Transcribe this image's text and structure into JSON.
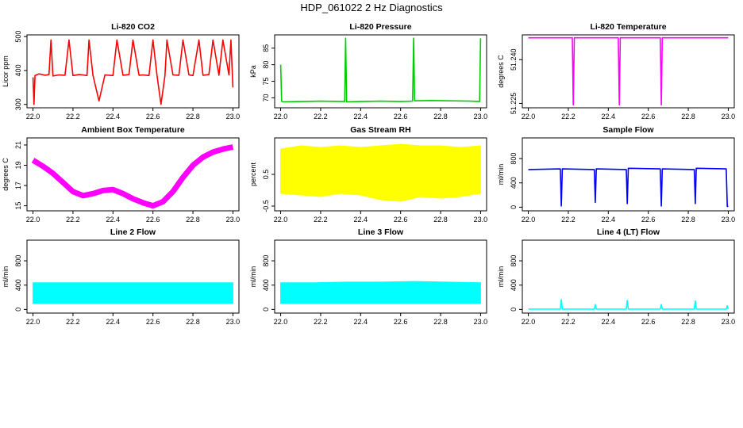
{
  "title": "HDP_061022 2 Hz Diagnostics",
  "chart_data": [
    {
      "type": "line",
      "title": "Li-820 CO2",
      "ylabel": "Licor ppm",
      "color": "#ff0000",
      "xlim": [
        21.97,
        23.03
      ],
      "ylim": [
        290,
        505
      ],
      "xticks": [
        "22.0",
        "22.2",
        "22.4",
        "22.6",
        "22.8",
        "23.0"
      ],
      "yticks": [
        "300",
        "400",
        "500"
      ],
      "series": [
        {
          "x": [
            22.0,
            22.005,
            22.01,
            22.03,
            22.06,
            22.08,
            22.09,
            22.1,
            22.13,
            22.16,
            22.18,
            22.2,
            22.23,
            22.25,
            22.27,
            22.28,
            22.3,
            22.33,
            22.36,
            22.4,
            22.42,
            22.45,
            22.48,
            22.5,
            22.53,
            22.55,
            22.58,
            22.6,
            22.62,
            22.64,
            22.66,
            22.67,
            22.7,
            22.73,
            22.75,
            22.78,
            22.8,
            22.83,
            22.85,
            22.88,
            22.9,
            22.93,
            22.95,
            22.98,
            22.99,
            23.0
          ],
          "y": [
            380,
            300,
            385,
            390,
            386,
            388,
            490,
            384,
            387,
            386,
            490,
            385,
            388,
            387,
            385,
            490,
            386,
            310,
            387,
            385,
            490,
            386,
            388,
            490,
            386,
            387,
            385,
            490,
            387,
            300,
            385,
            490,
            387,
            386,
            490,
            387,
            385,
            490,
            386,
            388,
            490,
            386,
            490,
            387,
            490,
            350
          ]
        }
      ]
    },
    {
      "type": "line",
      "title": "Li-820 Pressure",
      "ylabel": "kPa",
      "color": "#00cc00",
      "xlim": [
        21.97,
        23.03
      ],
      "ylim": [
        67,
        89
      ],
      "xticks": [
        "22.0",
        "22.2",
        "22.4",
        "22.6",
        "22.8",
        "23.0"
      ],
      "yticks": [
        "70",
        "75",
        "80",
        "85"
      ],
      "series": [
        {
          "x": [
            22.0,
            22.005,
            22.01,
            22.1,
            22.2,
            22.32,
            22.325,
            22.33,
            22.4,
            22.5,
            22.6,
            22.66,
            22.665,
            22.67,
            22.75,
            22.85,
            22.95,
            22.995,
            23.0
          ],
          "y": [
            80,
            69,
            68.8,
            68.9,
            69,
            68.9,
            88,
            68.8,
            68.9,
            69.0,
            68.9,
            69,
            88,
            69.1,
            69.2,
            69.1,
            69.0,
            68.9,
            88
          ]
        }
      ]
    },
    {
      "type": "line",
      "title": "Li-820 Temperature",
      "ylabel": "degrees C",
      "color": "#ff00ff",
      "xlim": [
        21.97,
        23.03
      ],
      "ylim": [
        51.2235,
        51.2485
      ],
      "xticks": [
        "22.0",
        "22.2",
        "22.4",
        "22.6",
        "22.8",
        "23.0"
      ],
      "yticks": [
        "51.225",
        "51.240"
      ],
      "series": [
        {
          "x": [
            22.0,
            22.22,
            22.225,
            22.23,
            22.45,
            22.455,
            22.46,
            22.66,
            22.665,
            22.67,
            22.8,
            23.0
          ],
          "y": [
            51.2475,
            51.2475,
            51.2245,
            51.2475,
            51.2475,
            51.2245,
            51.2475,
            51.2475,
            51.2245,
            51.2475,
            51.2475,
            51.2475
          ]
        }
      ]
    },
    {
      "type": "line",
      "title": "Ambient Box Temperature",
      "ylabel": "degrees C",
      "color": "#ff00ff",
      "xlim": [
        21.97,
        23.03
      ],
      "ylim": [
        14.5,
        21.7
      ],
      "xticks": [
        "22.0",
        "22.2",
        "22.4",
        "22.6",
        "22.8",
        "23.0"
      ],
      "yticks": [
        "15",
        "17",
        "19",
        "21"
      ],
      "series": [
        {
          "x": [
            22.0,
            22.05,
            22.1,
            22.15,
            22.2,
            22.25,
            22.3,
            22.35,
            22.4,
            22.45,
            22.5,
            22.55,
            22.6,
            22.65,
            22.7,
            22.75,
            22.8,
            22.85,
            22.9,
            22.95,
            23.0
          ],
          "y": [
            19.5,
            18.9,
            18.2,
            17.3,
            16.4,
            16.0,
            16.2,
            16.5,
            16.6,
            16.2,
            15.7,
            15.3,
            15.0,
            15.4,
            16.4,
            17.8,
            19.0,
            19.8,
            20.3,
            20.6,
            20.8
          ]
        }
      ]
    },
    {
      "type": "area",
      "title": "Gas Stream RH",
      "ylabel": "percent",
      "color": "#ffff00",
      "xlim": [
        21.97,
        23.03
      ],
      "ylim": [
        -0.65,
        1.65
      ],
      "xticks": [
        "22.0",
        "22.2",
        "22.4",
        "22.6",
        "22.8",
        "23.0"
      ],
      "yticks": [
        "-0.5",
        "0.5"
      ],
      "series": [
        {
          "x": [
            22.0,
            22.1,
            22.2,
            22.3,
            22.4,
            22.5,
            22.6,
            22.7,
            22.8,
            22.9,
            23.0
          ],
          "low": [
            -0.1,
            -0.15,
            -0.2,
            -0.1,
            -0.15,
            -0.3,
            -0.35,
            -0.2,
            -0.25,
            -0.2,
            -0.1
          ],
          "high": [
            1.3,
            1.4,
            1.35,
            1.4,
            1.35,
            1.4,
            1.45,
            1.4,
            1.4,
            1.35,
            1.4
          ]
        }
      ]
    },
    {
      "type": "line",
      "title": "Sample Flow",
      "ylabel": "ml/min",
      "color": "#0000ff",
      "xlim": [
        21.97,
        23.03
      ],
      "ylim": [
        -60,
        1140
      ],
      "xticks": [
        "22.0",
        "22.2",
        "22.4",
        "22.6",
        "22.8",
        "23.0"
      ],
      "yticks": [
        "0",
        "400",
        "800"
      ],
      "series": [
        {
          "x": [
            22.0,
            22.16,
            22.165,
            22.17,
            22.33,
            22.335,
            22.34,
            22.49,
            22.495,
            22.5,
            22.66,
            22.665,
            22.67,
            22.83,
            22.835,
            22.84,
            22.99,
            22.995,
            23.0
          ],
          "y": [
            620,
            630,
            20,
            630,
            620,
            80,
            630,
            620,
            60,
            640,
            630,
            20,
            630,
            620,
            60,
            640,
            630,
            10,
            20
          ]
        }
      ]
    },
    {
      "type": "area",
      "title": "Line 2 Flow",
      "ylabel": "ml/min",
      "color": "#00ffff",
      "xlim": [
        21.97,
        23.03
      ],
      "ylim": [
        -60,
        1140
      ],
      "xticks": [
        "22.0",
        "22.2",
        "22.4",
        "22.6",
        "22.8",
        "23.0"
      ],
      "yticks": [
        "0",
        "400",
        "800"
      ],
      "series": [
        {
          "x": [
            22.0,
            22.165,
            22.33,
            22.495,
            22.665,
            22.83,
            23.0
          ],
          "low": [
            100,
            100,
            100,
            100,
            100,
            100,
            100
          ],
          "high": [
            440,
            440,
            440,
            440,
            440,
            440,
            440
          ]
        }
      ]
    },
    {
      "type": "area",
      "title": "Line 3 Flow",
      "ylabel": "ml/min",
      "color": "#00ffff",
      "xlim": [
        21.97,
        23.03
      ],
      "ylim": [
        -60,
        1140
      ],
      "xticks": [
        "22.0",
        "22.2",
        "22.4",
        "22.6",
        "22.8",
        "23.0"
      ],
      "yticks": [
        "0",
        "400",
        "800"
      ],
      "series": [
        {
          "x": [
            22.0,
            22.165,
            22.33,
            22.495,
            22.665,
            22.83,
            23.0
          ],
          "low": [
            100,
            100,
            100,
            100,
            100,
            100,
            100
          ],
          "high": [
            440,
            440,
            450,
            450,
            460,
            450,
            440
          ]
        }
      ]
    },
    {
      "type": "line",
      "title": "Line 4 (LT) Flow",
      "ylabel": "ml/min",
      "color": "#00ffff",
      "xlim": [
        21.97,
        23.03
      ],
      "ylim": [
        -60,
        1140
      ],
      "xticks": [
        "22.0",
        "22.2",
        "22.4",
        "22.6",
        "22.8",
        "23.0"
      ],
      "yticks": [
        "0",
        "400",
        "800"
      ],
      "series": [
        {
          "x": [
            22.0,
            22.16,
            22.165,
            22.17,
            22.33,
            22.335,
            22.34,
            22.49,
            22.495,
            22.5,
            22.66,
            22.665,
            22.67,
            22.83,
            22.835,
            22.84,
            22.99,
            22.995,
            23.0
          ],
          "y": [
            5,
            5,
            160,
            5,
            5,
            80,
            5,
            5,
            150,
            5,
            5,
            80,
            5,
            5,
            140,
            5,
            5,
            60,
            5
          ]
        }
      ]
    }
  ]
}
